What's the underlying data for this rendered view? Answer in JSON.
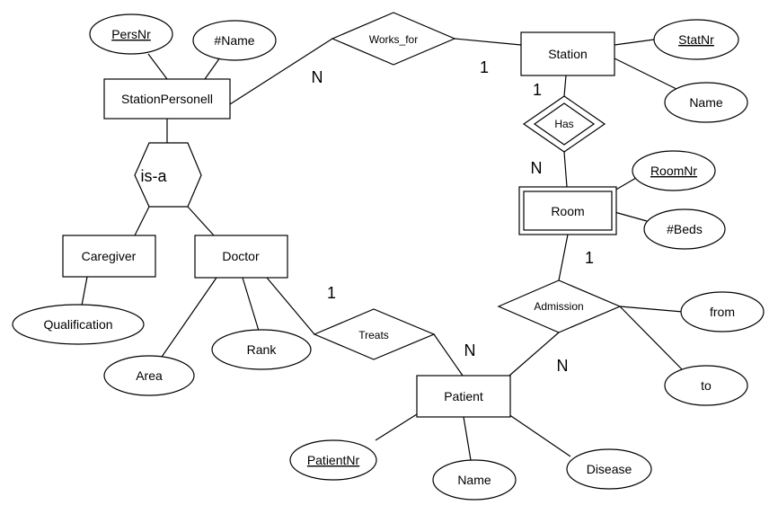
{
  "diagram": {
    "entities": {
      "station_personell": "StationPersonell",
      "station": "Station",
      "room": "Room",
      "caregiver": "Caregiver",
      "doctor": "Doctor",
      "patient": "Patient"
    },
    "relationships": {
      "works_for": "Works_for",
      "has": "Has",
      "admission": "Admission",
      "treats": "Treats",
      "isa": "is-a"
    },
    "attributes": {
      "persnr": "PersNr",
      "name_hash": "#Name",
      "statnr": "StatNr",
      "station_name": "Name",
      "roomnr": "RoomNr",
      "beds": "#Beds",
      "qualification": "Qualification",
      "area": "Area",
      "rank": "Rank",
      "from": "from",
      "to": "to",
      "patientnr": "PatientNr",
      "patient_name": "Name",
      "disease": "Disease"
    },
    "cardinalities": {
      "works_for_personell": "N",
      "works_for_station": "1",
      "has_station": "1",
      "has_room": "N",
      "admission_room": "1",
      "admission_patient": "N",
      "treats_doctor": "1",
      "treats_patient": "N"
    }
  }
}
